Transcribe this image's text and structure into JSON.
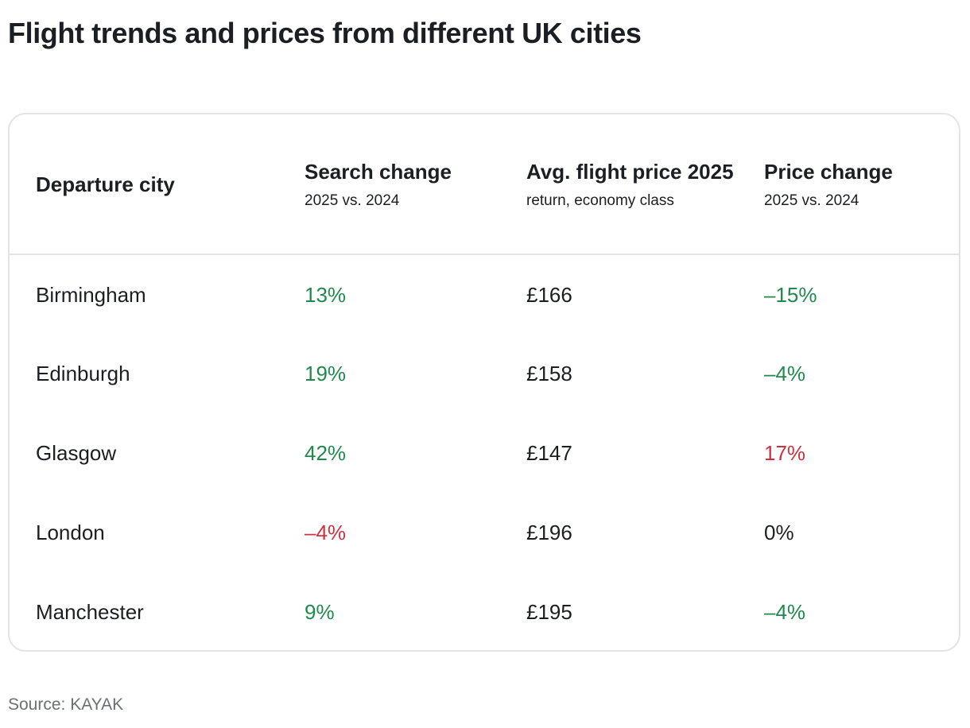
{
  "title": "Flight trends and prices from different UK cities",
  "table": {
    "headers": {
      "city": {
        "main": "Departure city",
        "sub": ""
      },
      "search": {
        "main": "Search change",
        "sub": "2025 vs. 2024"
      },
      "price": {
        "main": "Avg. flight price 2025",
        "sub": "return, economy class"
      },
      "change": {
        "main": "Price change",
        "sub": "2025 vs. 2024"
      }
    },
    "rows": [
      {
        "city": "Birmingham",
        "search_change": "13%",
        "avg_price": "£166",
        "price_change": "–15%"
      },
      {
        "city": "Edinburgh",
        "search_change": "19%",
        "avg_price": "£158",
        "price_change": "–4%"
      },
      {
        "city": "Glasgow",
        "search_change": "42%",
        "avg_price": "£147",
        "price_change": "17%"
      },
      {
        "city": "London",
        "search_change": "–4%",
        "avg_price": "£196",
        "price_change": "0%"
      },
      {
        "city": "Manchester",
        "search_change": "9%",
        "avg_price": "£195",
        "price_change": "–4%"
      }
    ]
  },
  "colors": {
    "positive": "#1f8a4c",
    "negative": "#d0313d",
    "neutral": "#1b1f23"
  },
  "source": "Source: KAYAK"
}
